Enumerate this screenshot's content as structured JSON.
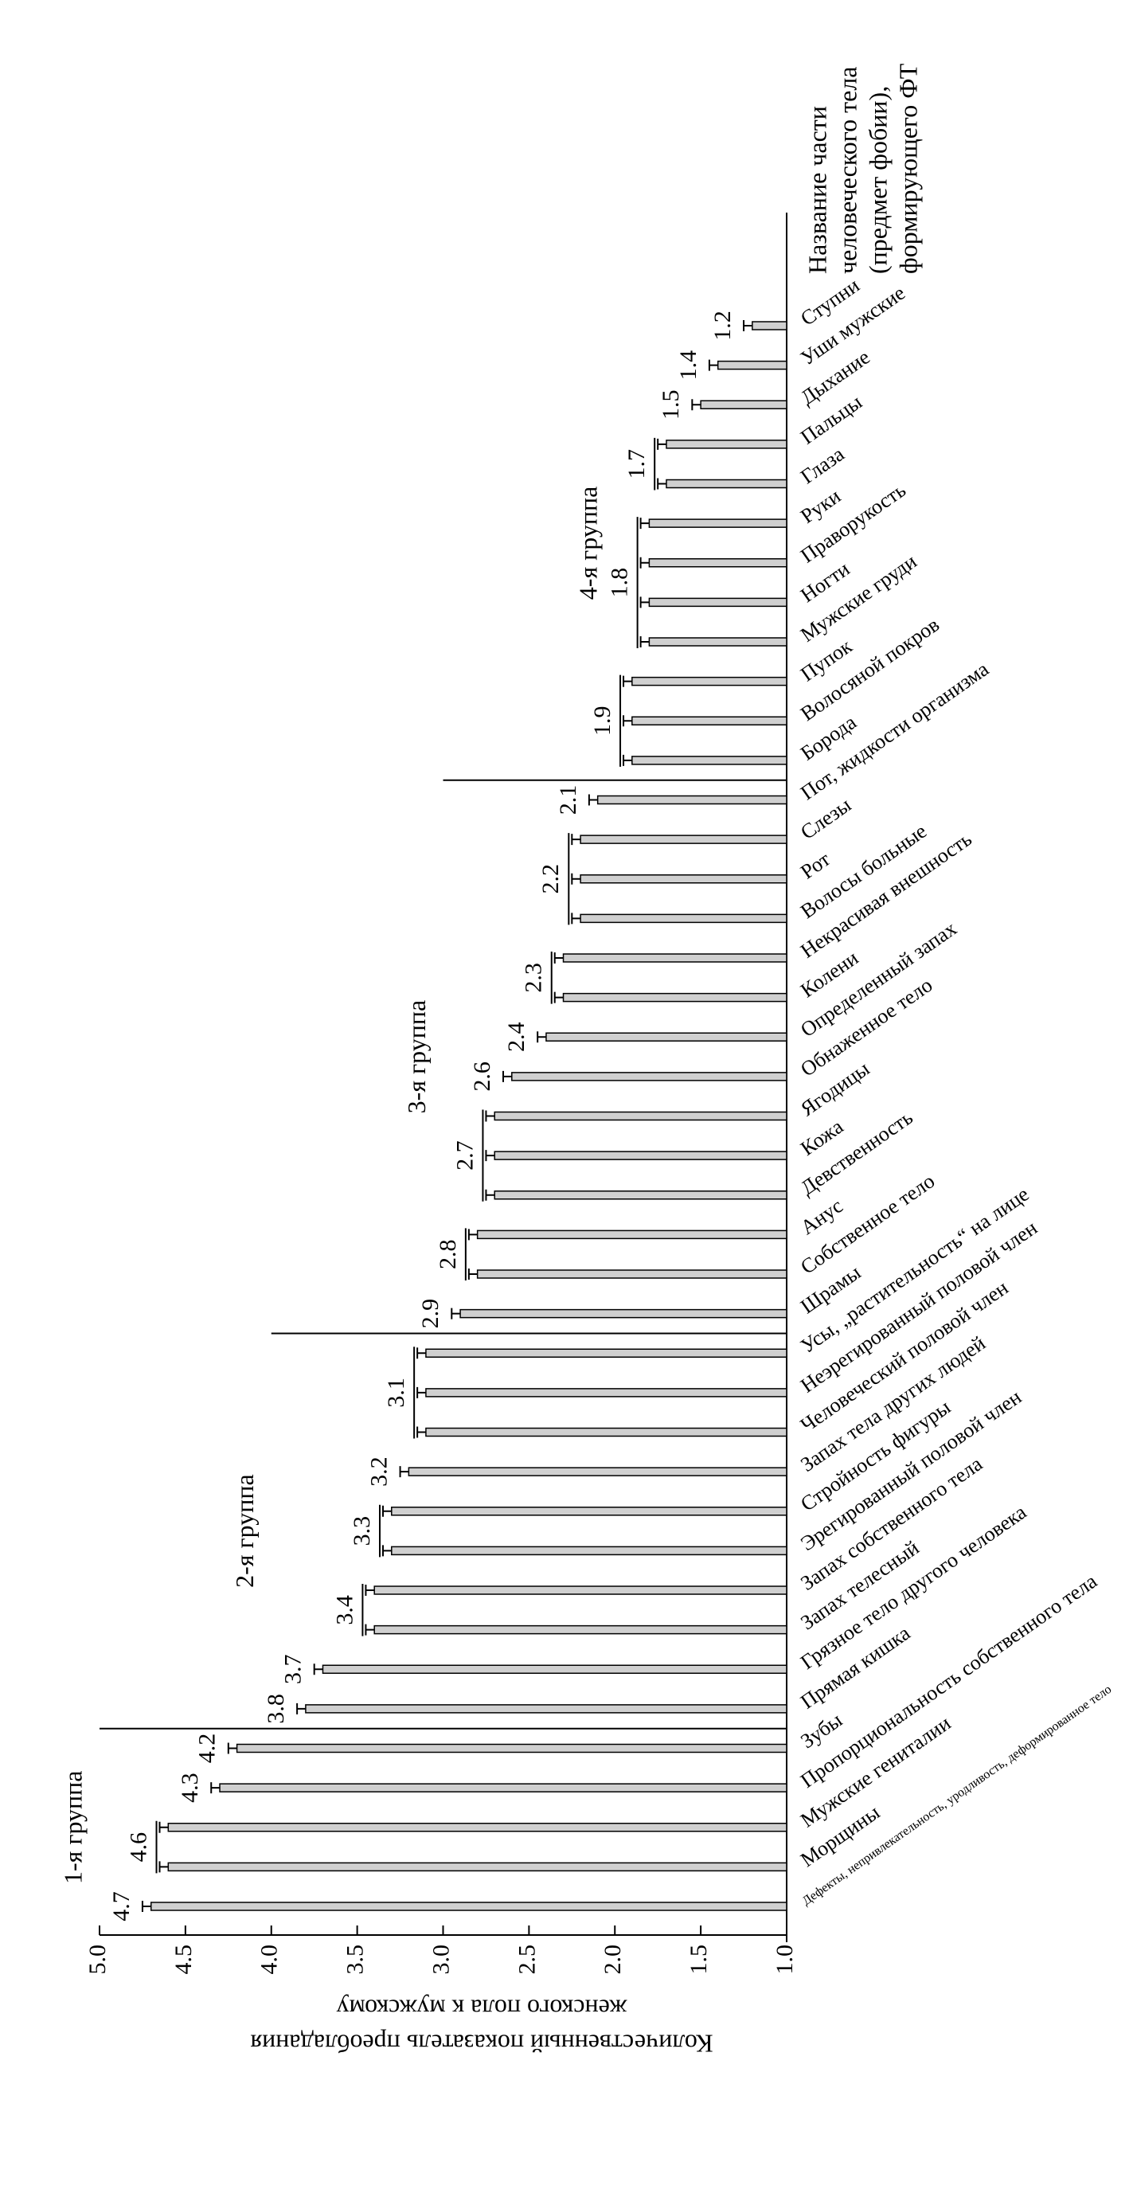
{
  "chart_data": {
    "type": "bar",
    "x_label": [
      "Название части",
      "человеческого тела",
      "(предмет фобии),",
      "формирующего ФТ"
    ],
    "y_label": [
      "Количественный показатель преобладания",
      "женского пола к мужскому"
    ],
    "ylim": [
      1,
      5
    ],
    "yticks": [
      {
        "value": 1,
        "label": "1.0"
      },
      1.5,
      {
        "value": 2,
        "label": "2.0"
      },
      2.5,
      {
        "value": 3,
        "label": "3.0"
      },
      3.5,
      {
        "value": 4,
        "label": "4.0"
      },
      4.5,
      {
        "value": 5,
        "label": "5.0"
      }
    ],
    "color": "#d0d0d0",
    "groups": [
      {
        "name": "1-я группа",
        "categories": [
          "Дефекты, непривлекательность, уродливость, деформированное тело",
          "Морщины",
          "Мужские гениталии",
          "Пропорциональность собственного тела",
          "Зубы"
        ],
        "values": [
          4.7,
          4.6,
          4.6,
          4.3,
          4.2
        ],
        "errors": [
          0.05,
          0.05,
          0.05,
          0.05,
          0.05
        ]
      },
      {
        "name": "2-я группа",
        "categories": [
          "Прямая кишка",
          "Грязное тело другого человека",
          "Запах телесный",
          "Запах собственного тела",
          "Эрегированный половой член",
          "Стройность фигуры",
          "Запах тела других людей",
          "Человеческий половой член",
          "Неэрегированный половой член",
          "Усы, „растительность“ на лице"
        ],
        "values": [
          3.8,
          3.7,
          3.4,
          3.4,
          3.3,
          3.3,
          3.2,
          3.1,
          3.1,
          3.1
        ],
        "errors": [
          0.05,
          0.05,
          0.05,
          0.05,
          0.05,
          0.05,
          0.05,
          0.05,
          0.05,
          0.05
        ]
      },
      {
        "name": "3-я группа",
        "categories": [
          "Шрамы",
          "Собственное тело",
          "Анус",
          "Девственность",
          "Кожа",
          "Ягодицы",
          "Обнаженное тело",
          "Определенный запах",
          "Колени",
          "Некрасивая внешность",
          "Волосы больные",
          "Рот",
          "Слезы",
          "Пот, жидкости организма"
        ],
        "values": [
          2.9,
          2.8,
          2.8,
          2.7,
          2.7,
          2.7,
          2.6,
          2.4,
          2.3,
          2.3,
          2.2,
          2.2,
          2.2,
          2.1
        ],
        "errors": [
          0.05,
          0.05,
          0.05,
          0.05,
          0.05,
          0.05,
          0.05,
          0.05,
          0.05,
          0.05,
          0.05,
          0.05,
          0.05,
          0.05
        ]
      },
      {
        "name": "4-я группа",
        "categories": [
          "Борода",
          "Волосяной покров",
          "Пупок",
          "Мужские груди",
          "Ногти",
          "Праворукость",
          "Руки",
          "Глаза",
          "Пальцы",
          "Дыхание",
          "Уши мужские",
          "Ступни"
        ],
        "values": [
          1.9,
          1.9,
          1.9,
          1.8,
          1.8,
          1.8,
          1.8,
          1.7,
          1.7,
          1.5,
          1.4,
          1.2
        ],
        "errors": [
          0.05,
          0.05,
          0.05,
          0.05,
          0.05,
          0.05,
          0.05,
          0.05,
          0.05,
          0.05,
          0.05,
          0.05
        ]
      }
    ]
  }
}
